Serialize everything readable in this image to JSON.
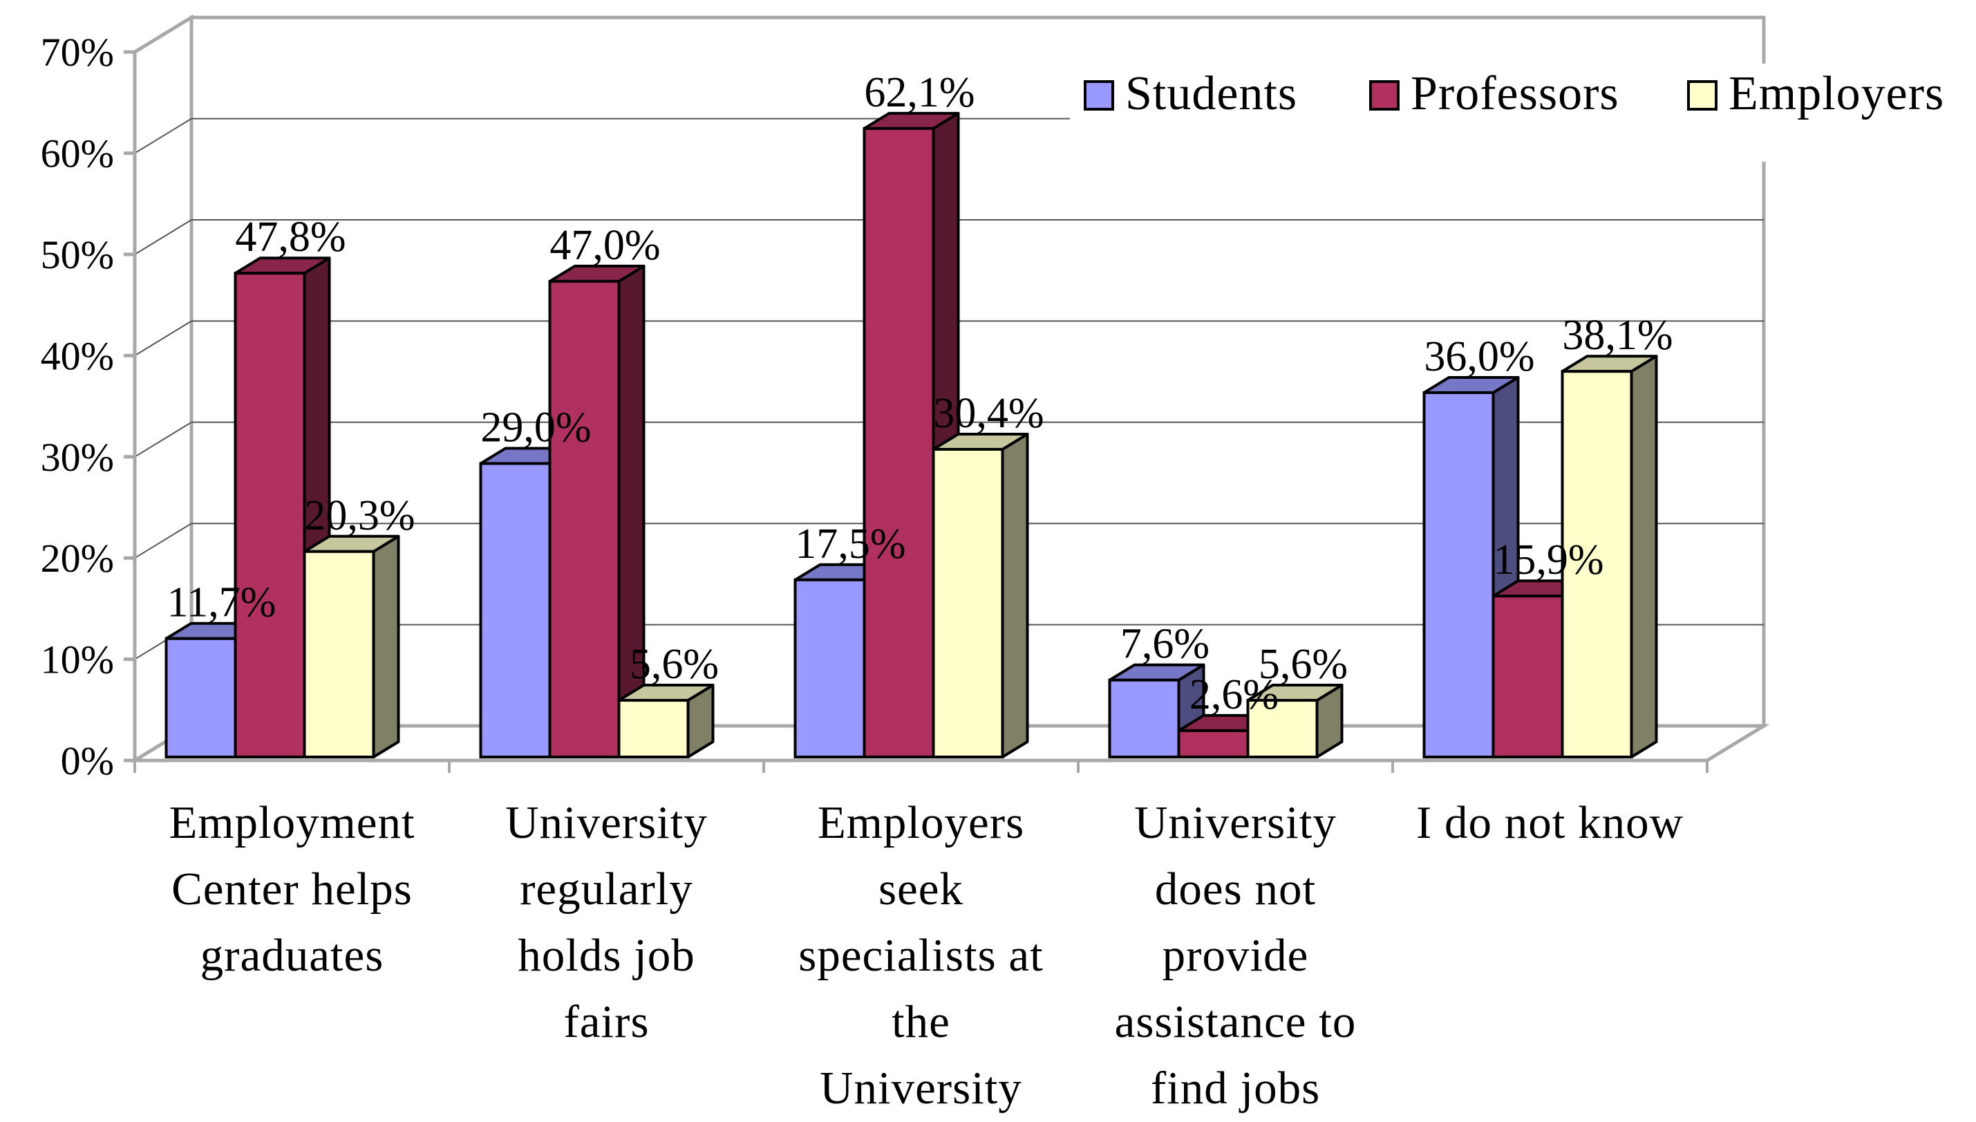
{
  "chart_data": {
    "type": "bar",
    "style": "3d-clustered-column",
    "title": "",
    "xlabel": "",
    "ylabel": "",
    "ylim": [
      0,
      70
    ],
    "y_ticks": [
      "0%",
      "10%",
      "20%",
      "30%",
      "40%",
      "50%",
      "60%",
      "70%"
    ],
    "grid": true,
    "legend_position": "top-right",
    "categories": [
      [
        "Employment",
        "Center helps",
        "graduates"
      ],
      [
        "University",
        "regularly",
        "holds job",
        "fairs"
      ],
      [
        "Employers",
        "seek",
        "specialists at",
        "the",
        "University"
      ],
      [
        "University",
        "does not",
        "provide",
        "assistance to",
        "find jobs"
      ],
      [
        "I do not know"
      ]
    ],
    "series": [
      {
        "name": "Students",
        "color": "#9999ff",
        "values": [
          11.7,
          29.0,
          17.5,
          7.6,
          36.0
        ],
        "labels": [
          "11,7%",
          "29,0%",
          "17,5%",
          "7,6%",
          "36,0%"
        ]
      },
      {
        "name": "Professors",
        "color": "#b03060",
        "values": [
          47.8,
          47.0,
          62.1,
          2.6,
          15.9
        ],
        "labels": [
          "47,8%",
          "47,0%",
          "62,1%",
          "2,6%",
          "15,9%"
        ]
      },
      {
        "name": "Employers",
        "color": "#ffffcc",
        "values": [
          20.3,
          5.6,
          30.4,
          5.6,
          38.1
        ],
        "labels": [
          "20,3%",
          "5,6%",
          "30,4%",
          "5,6%",
          "38,1%"
        ]
      }
    ]
  }
}
